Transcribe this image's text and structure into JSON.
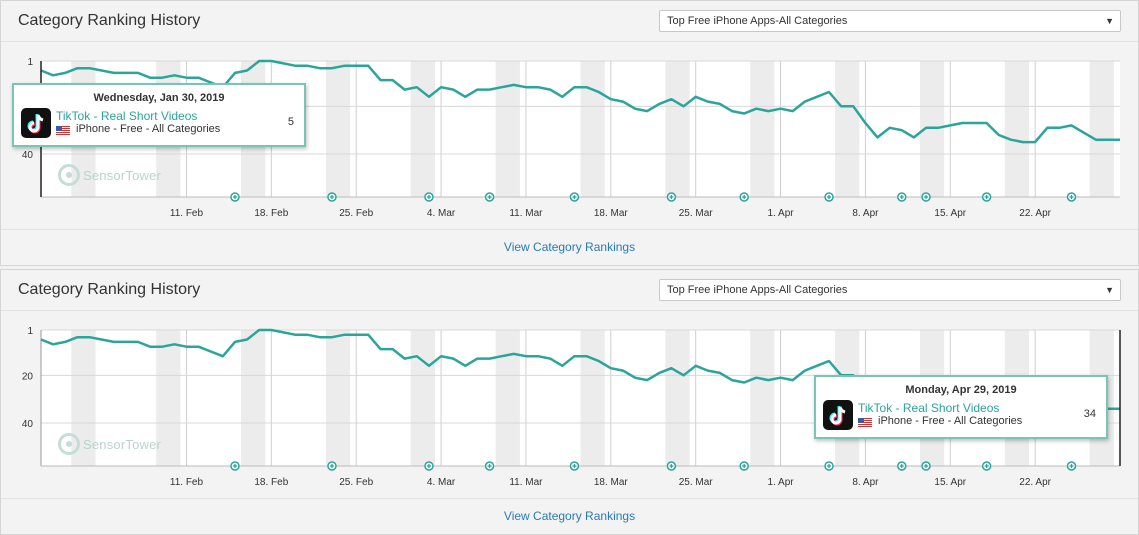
{
  "panels": [
    {
      "title": "Category Ranking History",
      "dropdown": {
        "selected": "Top Free iPhone Apps-All Categories"
      },
      "link": "View Category Rankings",
      "tooltip": {
        "date": "Wednesday, Jan 30, 2019",
        "app": "TikTok - Real Short Videos",
        "device": "iPhone - Free - All Categories",
        "value": "5",
        "icon": "tiktok-app-icon",
        "flag": "us-flag-icon"
      },
      "watermark": "SensorTower"
    },
    {
      "title": "Category Ranking History",
      "dropdown": {
        "selected": "Top Free iPhone Apps-All Categories"
      },
      "link": "View Category Rankings",
      "tooltip": {
        "date": "Monday, Apr 29, 2019",
        "app": "TikTok - Real Short Videos",
        "device": "iPhone - Free - All Categories",
        "value": "34",
        "icon": "tiktok-app-icon",
        "flag": "us-flag-icon"
      },
      "watermark": "SensorTower"
    }
  ],
  "chart_data": {
    "type": "line",
    "x": [
      "Jan 30",
      "Jan 31",
      "Feb 1",
      "Feb 2",
      "Feb 3",
      "Feb 4",
      "Feb 5",
      "Feb 6",
      "Feb 7",
      "Feb 8",
      "Feb 9",
      "Feb 10",
      "Feb 11",
      "Feb 12",
      "Feb 13",
      "Feb 14",
      "Feb 15",
      "Feb 16",
      "Feb 17",
      "Feb 18",
      "Feb 19",
      "Feb 20",
      "Feb 21",
      "Feb 22",
      "Feb 23",
      "Feb 24",
      "Feb 25",
      "Feb 26",
      "Feb 27",
      "Feb 28",
      "Mar 1",
      "Mar 2",
      "Mar 3",
      "Mar 4",
      "Mar 5",
      "Mar 6",
      "Mar 7",
      "Mar 8",
      "Mar 9",
      "Mar 10",
      "Mar 11",
      "Mar 12",
      "Mar 13",
      "Mar 14",
      "Mar 15",
      "Mar 16",
      "Mar 17",
      "Mar 18",
      "Mar 19",
      "Mar 20",
      "Mar 21",
      "Mar 22",
      "Mar 23",
      "Mar 24",
      "Mar 25",
      "Mar 26",
      "Mar 27",
      "Mar 28",
      "Mar 29",
      "Mar 30",
      "Mar 31",
      "Apr 1",
      "Apr 2",
      "Apr 3",
      "Apr 4",
      "Apr 5",
      "Apr 6",
      "Apr 7",
      "Apr 8",
      "Apr 9",
      "Apr 10",
      "Apr 11",
      "Apr 12",
      "Apr 13",
      "Apr 14",
      "Apr 15",
      "Apr 16",
      "Apr 17",
      "Apr 18",
      "Apr 19",
      "Apr 20",
      "Apr 21",
      "Apr 22",
      "Apr 23",
      "Apr 24",
      "Apr 25",
      "Apr 26",
      "Apr 27",
      "Apr 28",
      "Apr 29"
    ],
    "series": [
      {
        "values": [
          5,
          7,
          6,
          4,
          4,
          5,
          6,
          6,
          6,
          8,
          8,
          7,
          8,
          8,
          10,
          12,
          6,
          5,
          1,
          1,
          2,
          3,
          3,
          4,
          4,
          3,
          3,
          3,
          9,
          9,
          13,
          12,
          16,
          12,
          13,
          16,
          13,
          13,
          12,
          11,
          12,
          12,
          13,
          16,
          12,
          12,
          14,
          17,
          18,
          21,
          22,
          19,
          17,
          20,
          16,
          18,
          19,
          22,
          23,
          21,
          22,
          21,
          22,
          18,
          16,
          14,
          20,
          20,
          27,
          33,
          29,
          30,
          33,
          29,
          29,
          28,
          27,
          27,
          27,
          32,
          34,
          35,
          35,
          29,
          29,
          28,
          31,
          34,
          34,
          34
        ]
      }
    ],
    "y_ticks": [
      1,
      20,
      40
    ],
    "y_range": [
      1,
      58
    ],
    "y_inverted": true,
    "x_ticks": [
      "11. Feb",
      "18. Feb",
      "25. Feb",
      "4. Mar",
      "11. Mar",
      "18. Mar",
      "25. Mar",
      "1. Apr",
      "8. Apr",
      "15. Apr",
      "22. Apr"
    ],
    "x_tick_index": [
      12,
      19,
      26,
      33,
      40,
      47,
      54,
      61,
      68,
      75,
      82
    ],
    "event_marker_index": [
      16,
      24,
      32,
      37,
      44,
      52,
      58,
      65,
      71,
      73,
      78,
      85
    ],
    "line_color": "#2ba59a",
    "grid": true
  },
  "panel1_y_labels": [
    "1",
    "40"
  ]
}
